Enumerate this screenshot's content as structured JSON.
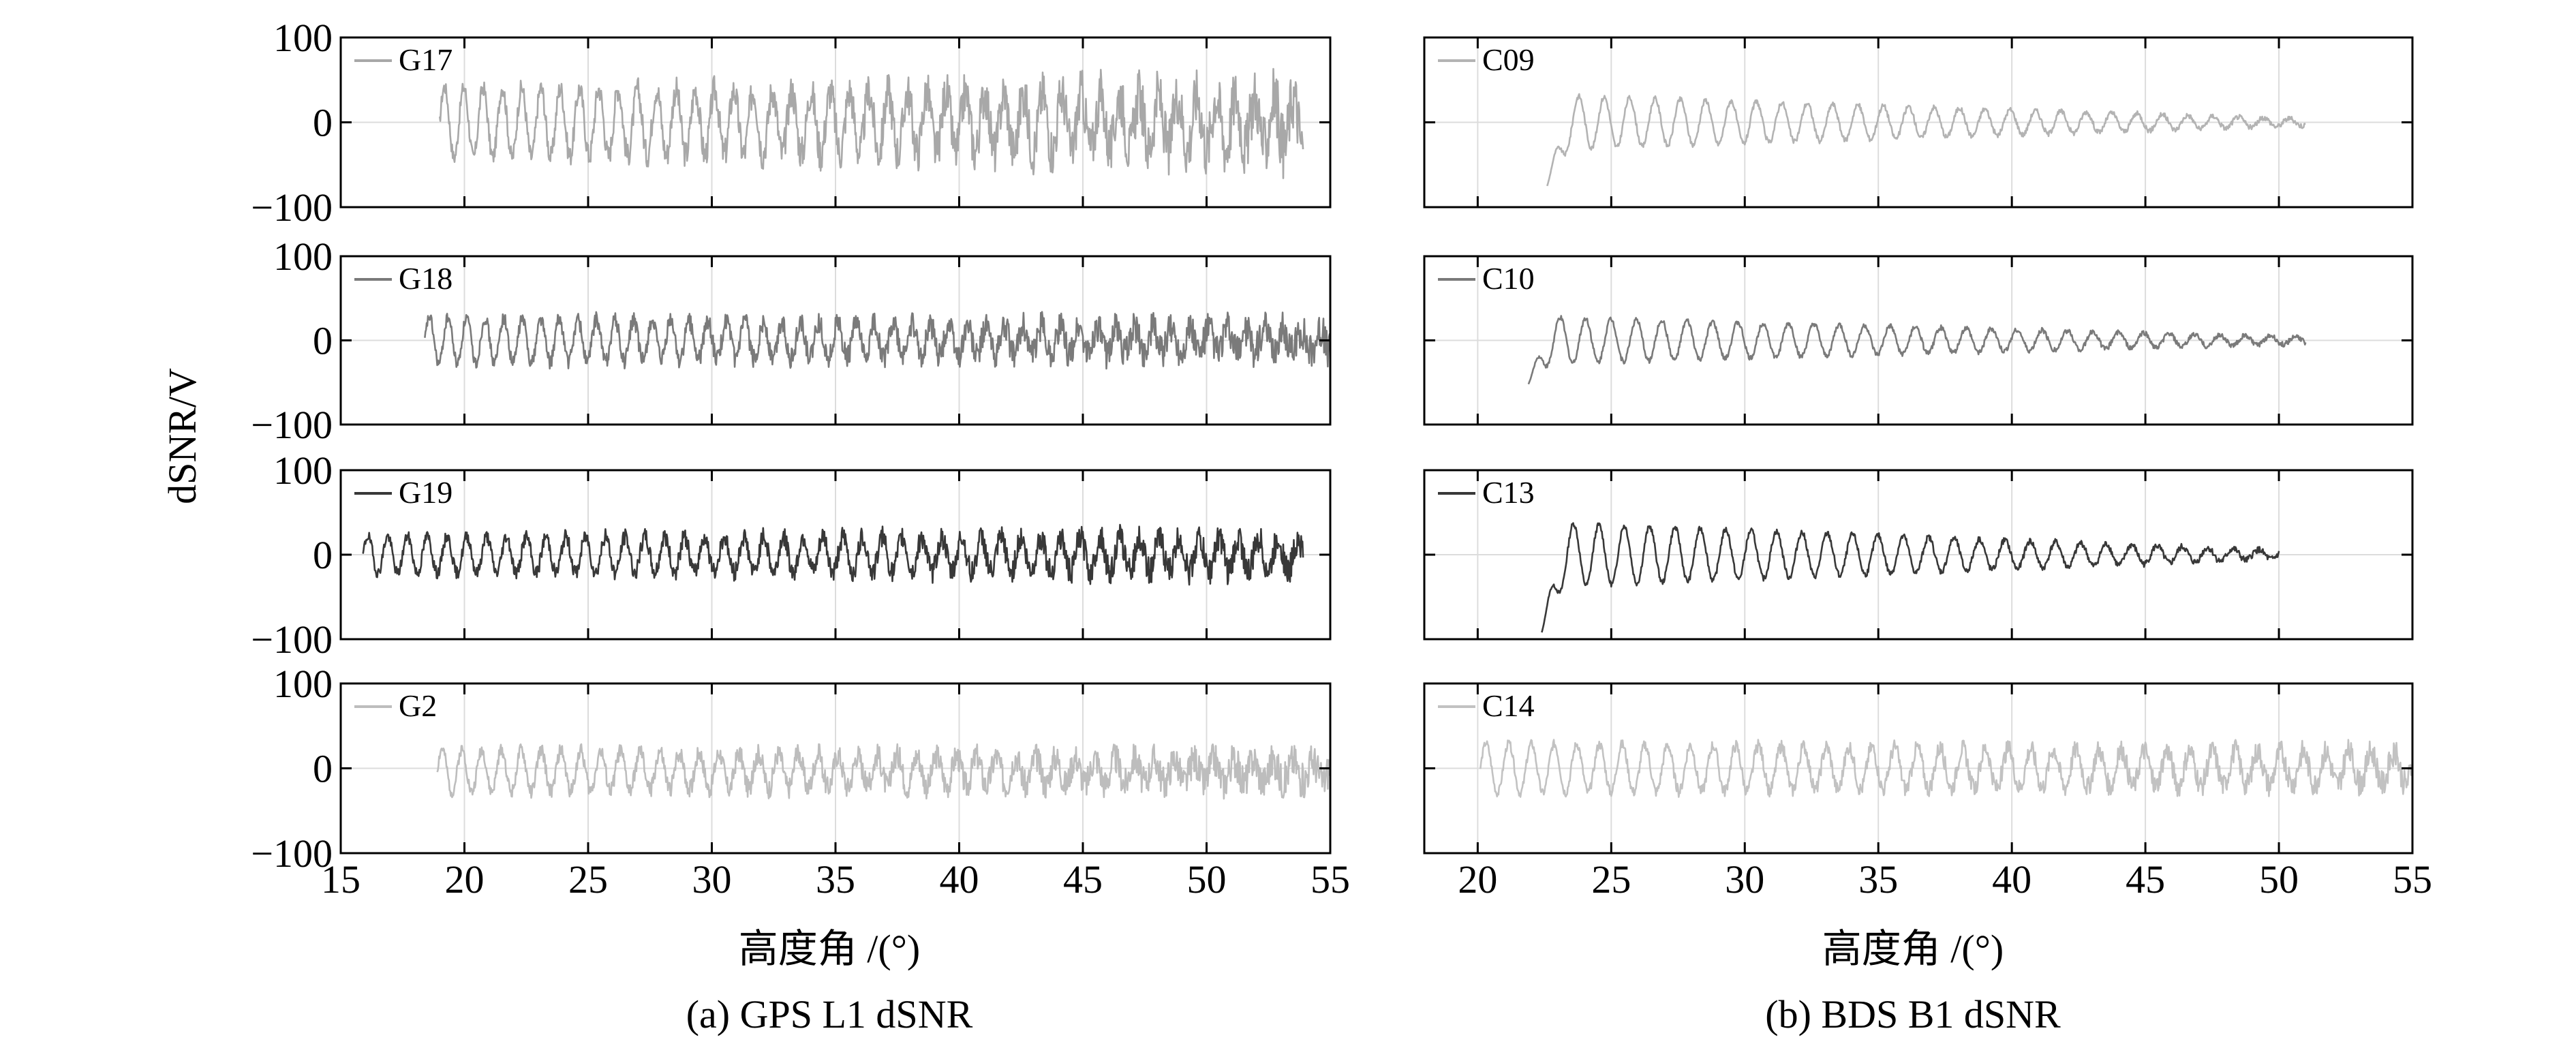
{
  "figure": {
    "ylabel": "dSNR/V",
    "panel_titles": [
      "(a) GPS L1 dSNR",
      "(b) BDS B1 dSNR"
    ],
    "xlabel_a": "高度角 /(°)",
    "xlabel_b": "高度角 /(°)"
  },
  "chart_data": [
    {
      "type": "line",
      "panel": "a",
      "row": 1,
      "series": [
        {
          "name": "G17",
          "color": "#a8a8a8",
          "start": 19.0,
          "end": 53.9,
          "amp0": 42,
          "amp1": 30,
          "noise0": 8,
          "noise1": 38,
          "period": 0.78,
          "offset": 0,
          "seed": 17
        }
      ],
      "xlim": [
        15,
        55
      ],
      "ylim": [
        -100,
        100
      ],
      "xticks": [
        15,
        20,
        25,
        30,
        35,
        40,
        45,
        50,
        55
      ],
      "yticks": [
        -100,
        0,
        100
      ],
      "xticklabels": [],
      "yticklabels": [
        "−100",
        "0",
        "100"
      ],
      "grid": true
    },
    {
      "type": "line",
      "panel": "a",
      "row": 2,
      "series": [
        {
          "name": "G18",
          "color": "#7a7a7a",
          "start": 18.4,
          "end": 55,
          "amp0": 28,
          "amp1": 12,
          "noise0": 6,
          "noise1": 22,
          "period": 0.75,
          "offset": 0,
          "seed": 18
        }
      ],
      "xlim": [
        15,
        55
      ],
      "ylim": [
        -100,
        100
      ],
      "xticks": [
        15,
        20,
        25,
        30,
        35,
        40,
        45,
        50,
        55
      ],
      "yticks": [
        -100,
        0,
        100
      ],
      "xticklabels": [],
      "yticklabels": [
        "−100",
        "0",
        "100"
      ],
      "grid": true
    },
    {
      "type": "line",
      "panel": "a",
      "row": 3,
      "series": [
        {
          "name": "G19",
          "color": "#383838",
          "start": 15.9,
          "end": 53.9,
          "amp0": 22,
          "amp1": 20,
          "noise0": 6,
          "noise1": 18,
          "period": 0.8,
          "offset": 0,
          "seed": 19
        }
      ],
      "xlim": [
        15,
        55
      ],
      "ylim": [
        -100,
        100
      ],
      "xticks": [
        15,
        20,
        25,
        30,
        35,
        40,
        45,
        50,
        55
      ],
      "yticks": [
        -100,
        0,
        100
      ],
      "xticklabels": [],
      "yticklabels": [
        "−100",
        "0",
        "100"
      ],
      "grid": true
    },
    {
      "type": "line",
      "panel": "a",
      "row": 4,
      "series": [
        {
          "name": "G2",
          "color": "#bdbdbd",
          "start": 18.9,
          "end": 55,
          "amp0": 26,
          "amp1": 12,
          "noise0": 6,
          "noise1": 22,
          "period": 0.8,
          "offset": -3,
          "seed": 2
        }
      ],
      "xlim": [
        15,
        55
      ],
      "ylim": [
        -100,
        100
      ],
      "xticks": [
        15,
        20,
        25,
        30,
        35,
        40,
        45,
        50,
        55
      ],
      "yticks": [
        -100,
        0,
        100
      ],
      "xticklabels": [
        "15",
        "20",
        "25",
        "30",
        "35",
        "40",
        "45",
        "50",
        "55"
      ],
      "yticklabels": [
        "−100",
        "0",
        "100"
      ],
      "grid": true
    },
    {
      "type": "line",
      "panel": "b",
      "row": 1,
      "series": [
        {
          "name": "C09",
          "color": "#b3b3b3",
          "start": 22.6,
          "end": 51.0,
          "amp0": 32,
          "amp1": 4,
          "noise0": 3,
          "noise1": 3,
          "period": 0.95,
          "offset": 0,
          "seed": 9,
          "startValue": -75
        }
      ],
      "xlim": [
        18,
        55
      ],
      "ylim": [
        -100,
        100
      ],
      "xticks": [
        20,
        25,
        30,
        35,
        40,
        45,
        50,
        55
      ],
      "yticks": [
        -100,
        0,
        100
      ],
      "xticklabels": [],
      "yticklabels": [],
      "grid": true
    },
    {
      "type": "line",
      "panel": "b",
      "row": 2,
      "series": [
        {
          "name": "C10",
          "color": "#7a7a7a",
          "start": 21.9,
          "end": 51.0,
          "amp0": 28,
          "amp1": 4,
          "noise0": 3,
          "noise1": 3,
          "period": 0.95,
          "offset": 0,
          "seed": 10,
          "startValue": -52
        }
      ],
      "xlim": [
        18,
        55
      ],
      "ylim": [
        -100,
        100
      ],
      "xticks": [
        20,
        25,
        30,
        35,
        40,
        45,
        50,
        55
      ],
      "yticks": [
        -100,
        0,
        100
      ],
      "xticklabels": [],
      "yticklabels": [],
      "grid": true
    },
    {
      "type": "line",
      "panel": "b",
      "row": 3,
      "series": [
        {
          "name": "C13",
          "color": "#383838",
          "start": 22.4,
          "end": 50.0,
          "amp0": 38,
          "amp1": 5,
          "noise0": 3,
          "noise1": 4,
          "period": 0.95,
          "offset": 0,
          "seed": 13,
          "startValue": -92
        }
      ],
      "xlim": [
        18,
        55
      ],
      "ylim": [
        -100,
        100
      ],
      "xticks": [
        20,
        25,
        30,
        35,
        40,
        45,
        50,
        55
      ],
      "yticks": [
        -100,
        0,
        100
      ],
      "xticklabels": [],
      "yticklabels": [],
      "grid": true
    },
    {
      "type": "line",
      "panel": "b",
      "row": 4,
      "series": [
        {
          "name": "C14",
          "color": "#c2c2c2",
          "start": 20.1,
          "end": 55,
          "amp0": 30,
          "amp1": 18,
          "noise0": 4,
          "noise1": 16,
          "period": 0.85,
          "offset": 0,
          "seed": 14
        }
      ],
      "xlim": [
        18,
        55
      ],
      "ylim": [
        -100,
        100
      ],
      "xticks": [
        20,
        25,
        30,
        35,
        40,
        45,
        50,
        55
      ],
      "yticks": [
        -100,
        0,
        100
      ],
      "xticklabels": [
        "20",
        "25",
        "30",
        "35",
        "40",
        "45",
        "50",
        "55"
      ],
      "yticklabels": [],
      "grid": true
    }
  ]
}
